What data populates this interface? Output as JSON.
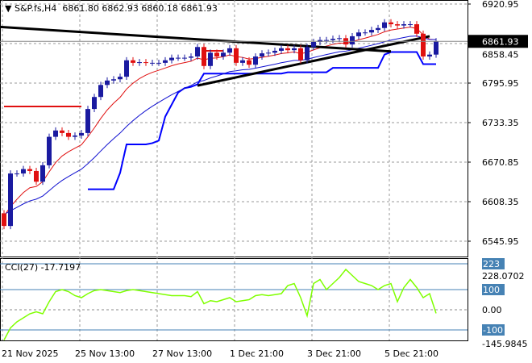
{
  "header": {
    "symbol": "S&P.fs,H4",
    "open": "6861.80",
    "high": "6862.93",
    "low": "6860.18",
    "close": "6861.93"
  },
  "colors": {
    "bull": "#1a1aa0",
    "bear": "#e01010",
    "ema_fast": "#e01010",
    "ema_slow": "#1010d0",
    "channel": "#0000ff",
    "trend": "#000000",
    "cci": "#7fff00",
    "label_bg": "#4682b4"
  },
  "chart_data": [
    {
      "type": "candlestick",
      "title": "S&P.fs,H4",
      "ylim": [
        6530,
        6930
      ],
      "y_ticks": [
        "6920.95",
        "6858.45",
        "6795.95",
        "6733.35",
        "6670.85",
        "6608.35",
        "6545.95"
      ],
      "current_price": "6861.93",
      "x_labels": [
        "21 Nov 2025",
        "25 Nov 13:00",
        "27 Nov 13:00",
        "1 Dec 21:00",
        "3 Dec 21:00",
        "5 Dec 21:00"
      ],
      "x_label_index": [
        0,
        12,
        24,
        36,
        48,
        60
      ],
      "close": [
        6570,
        6653,
        6653,
        6660,
        6657,
        6640,
        6666,
        6711,
        6721,
        6717,
        6711,
        6713,
        6717,
        6755,
        6774,
        6793,
        6800,
        6802,
        6806,
        6832,
        6828,
        6829,
        6828,
        6828,
        6828,
        6832,
        6836,
        6836,
        6836,
        6838,
        6853,
        6823,
        6844,
        6838,
        6844,
        6851,
        6828,
        6832,
        6825,
        6838,
        6843,
        6844,
        6847,
        6851,
        6848,
        6851,
        6832,
        6853,
        6861,
        6864,
        6864,
        6866,
        6867,
        6857,
        6870,
        6876,
        6876,
        6880,
        6883,
        6892,
        6889,
        6887,
        6889,
        6889,
        6874,
        6838,
        6841,
        6862
      ],
      "first_open": 6590,
      "red_level": {
        "price": 6759,
        "from": 0,
        "to": 12
      },
      "red_level2": {
        "price": 6847,
        "from": 31,
        "to": 34
      },
      "trendlines": [
        {
          "from": [
            -1,
            6885
          ],
          "to": [
            60,
            6846
          ]
        },
        {
          "from": [
            30,
            6792
          ],
          "to": [
            66,
            6870
          ]
        }
      ]
    },
    {
      "type": "line",
      "title": "CCI(27)",
      "value": "-17.7197",
      "ylim": [
        -160,
        240
      ],
      "levels": [
        "223",
        "100",
        "0.00",
        "-100"
      ],
      "range_labels": [
        "228.0702",
        "-145.9845"
      ],
      "values": [
        -150,
        -90,
        -60,
        -40,
        -20,
        -10,
        -20,
        40,
        90,
        100,
        90,
        70,
        60,
        80,
        95,
        100,
        95,
        90,
        85,
        95,
        100,
        95,
        90,
        85,
        80,
        75,
        70,
        70,
        70,
        65,
        90,
        30,
        45,
        40,
        50,
        60,
        40,
        45,
        50,
        70,
        75,
        70,
        75,
        80,
        120,
        130,
        60,
        -30,
        130,
        150,
        100,
        130,
        160,
        200,
        170,
        140,
        130,
        120,
        100,
        120,
        130,
        40,
        110,
        150,
        110,
        60,
        80,
        -17.7
      ]
    }
  ]
}
